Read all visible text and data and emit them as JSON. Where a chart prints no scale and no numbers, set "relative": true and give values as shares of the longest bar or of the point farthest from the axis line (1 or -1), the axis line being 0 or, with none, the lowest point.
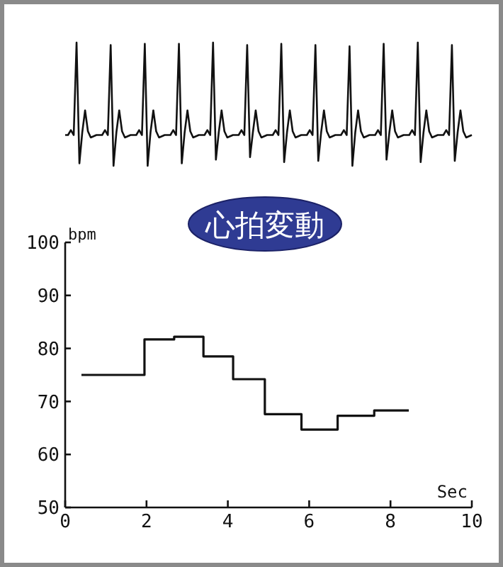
{
  "chart_data": [
    {
      "type": "line",
      "relative": true,
      "color": "#111111",
      "categories": [
        null,
        null,
        null,
        null,
        null,
        null,
        null,
        null,
        null,
        null,
        null,
        null,
        null,
        null,
        null,
        null,
        null,
        null,
        null,
        null,
        null,
        null,
        null,
        null,
        null,
        null,
        null,
        null,
        null,
        null,
        null,
        null,
        null,
        null,
        null,
        null,
        null,
        null,
        null,
        null,
        null,
        null,
        null,
        null,
        null,
        null,
        null,
        null,
        null,
        null,
        null,
        null,
        null,
        null,
        null,
        null,
        null,
        null,
        null,
        null,
        null,
        null,
        null,
        null,
        null,
        null,
        null,
        null,
        null,
        null,
        null,
        null,
        null,
        null,
        null,
        null,
        null,
        null,
        null,
        null,
        null,
        null,
        null,
        null,
        null,
        null,
        null,
        null,
        null,
        null,
        null,
        null,
        null,
        null,
        null,
        null,
        null,
        null,
        null,
        null,
        null,
        null,
        null,
        null,
        null,
        null,
        null,
        null,
        null,
        null,
        null,
        null,
        null,
        null,
        null,
        null,
        null,
        null,
        null,
        null,
        null,
        null,
        null,
        null,
        null,
        null,
        null,
        null,
        null,
        null,
        null,
        null,
        null,
        null,
        null,
        null,
        null,
        null,
        null,
        null,
        null,
        null,
        null,
        null
      ],
      "values": [
        0.25,
        0.25,
        0.29,
        0.25,
        1,
        0.02,
        0.27,
        0.45,
        0.28,
        0.23,
        0.24,
        0.25,
        0.25,
        0.25,
        0.29,
        0.25,
        0.98,
        0,
        0.27,
        0.45,
        0.28,
        0.23,
        0.24,
        0.25,
        0.25,
        0.25,
        0.29,
        0.25,
        0.99,
        0,
        0.27,
        0.45,
        0.28,
        0.23,
        0.24,
        0.25,
        0.25,
        0.25,
        0.29,
        0.25,
        0.99,
        0.02,
        0.27,
        0.45,
        0.28,
        0.23,
        0.24,
        0.25,
        0.25,
        0.25,
        0.29,
        0.25,
        1,
        0.05,
        0.27,
        0.45,
        0.28,
        0.23,
        0.24,
        0.25,
        0.25,
        0.25,
        0.29,
        0.25,
        0.98,
        0.07,
        0.27,
        0.45,
        0.28,
        0.23,
        0.24,
        0.25,
        0.25,
        0.25,
        0.29,
        0.25,
        0.99,
        0.03,
        0.27,
        0.45,
        0.28,
        0.23,
        0.24,
        0.25,
        0.25,
        0.25,
        0.29,
        0.25,
        0.98,
        0.04,
        0.27,
        0.45,
        0.28,
        0.23,
        0.24,
        0.25,
        0.25,
        0.25,
        0.29,
        0.25,
        0.97,
        0,
        0.27,
        0.45,
        0.28,
        0.23,
        0.24,
        0.25,
        0.25,
        0.25,
        0.29,
        0.25,
        0.99,
        0.05,
        0.27,
        0.45,
        0.28,
        0.23,
        0.24,
        0.25,
        0.25,
        0.25,
        0.29,
        0.25,
        1,
        0.03,
        0.27,
        0.45,
        0.28,
        0.23,
        0.24,
        0.25,
        0.25,
        0.25,
        0.29,
        0.25,
        0.98,
        0.04,
        0.27,
        0.45,
        0.28,
        0.23,
        0.24,
        0.25
      ]
    },
    {
      "type": "step",
      "title": "心拍変動",
      "xlabel": "Sec",
      "ylabel": "bpm",
      "x": [
        0.4,
        1.95,
        2.68,
        3.4,
        4.13,
        4.91,
        5.81,
        6.7,
        7.6,
        8.45
      ],
      "series": [
        {
          "color": "#111111",
          "values": [
            75,
            81.7,
            82.2,
            78.5,
            74.2,
            67.6,
            64.7,
            67.3,
            68.3,
            68.3
          ]
        }
      ],
      "xlim": [
        0,
        10
      ],
      "xticks": [
        0,
        2,
        4,
        6,
        8,
        10
      ],
      "ylim": [
        50,
        100
      ],
      "yticks": [
        50,
        60,
        70,
        80,
        90,
        100
      ],
      "grid": false,
      "marker": "none",
      "line_style": "solid"
    }
  ]
}
